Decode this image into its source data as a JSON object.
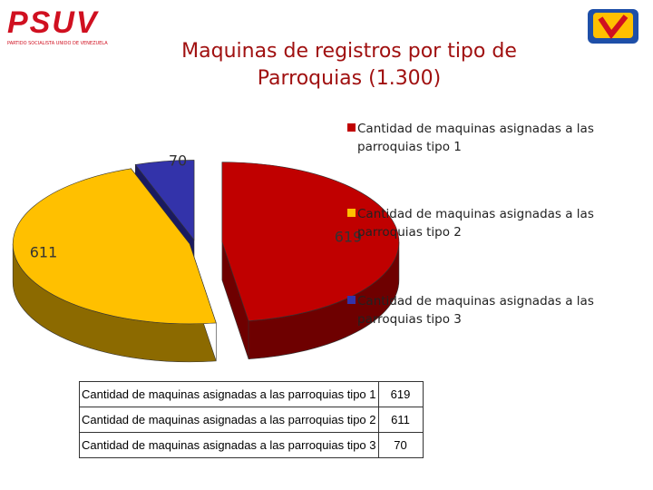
{
  "logo": {
    "name": "PSUV",
    "subtitle": "PARTIDO SOCIALISTA UNIDO DE VENEZUELA"
  },
  "chart_data": {
    "type": "pie",
    "title": "Maquinas de registros por tipo de Parroquias (1.300)",
    "categories": [
      "Cantidad de maquinas asignadas a las parroquias tipo 1",
      "Cantidad de maquinas asignadas a las parroquias tipo 2",
      "Cantidad de maquinas asignadas a las parroquias tipo 3"
    ],
    "values": [
      619,
      611,
      70
    ],
    "colors": [
      "#c00000",
      "#ffc000",
      "#3333aa"
    ],
    "side_colors": [
      "#6e0000",
      "#8c6a00",
      "#1a1a60"
    ]
  },
  "table": {
    "rows": [
      [
        "Cantidad de maquinas asignadas a las parroquias tipo 1",
        "619"
      ],
      [
        "Cantidad de maquinas asignadas a las parroquias tipo 2",
        "611"
      ],
      [
        "Cantidad de maquinas asignadas a las parroquias tipo 3",
        "70"
      ]
    ]
  }
}
